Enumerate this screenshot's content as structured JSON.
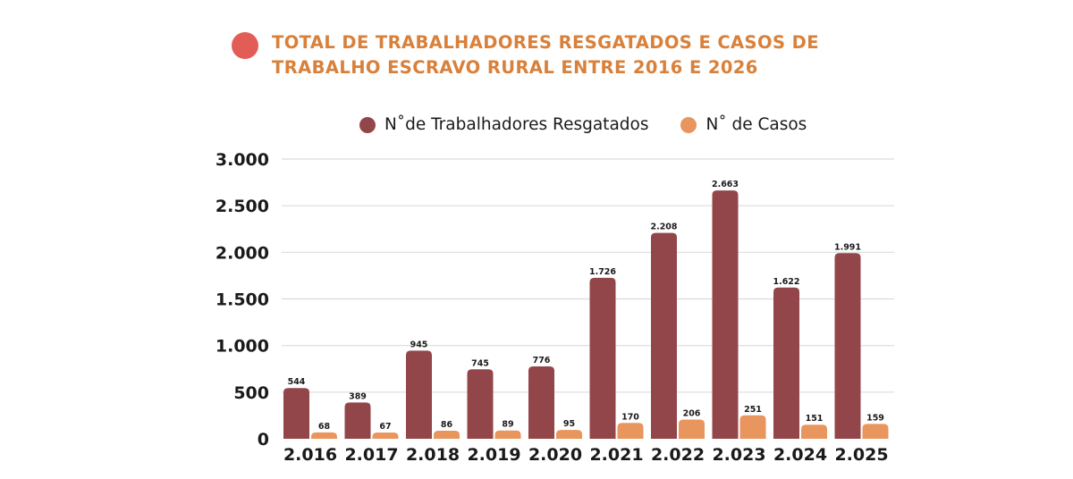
{
  "chart_data": {
    "type": "bar",
    "title": "TOTAL DE TRABALHADORES RESGATADOS E CASOS DE TRABALHO ESCRAVO RURAL ENTRE 2016 E 2026",
    "title_lines": [
      "TOTAL DE TRABALHADORES RESGATADOS E CASOS DE",
      "TRABALHO ESCRAVO RURAL ENTRE 2016 E 2026"
    ],
    "title_marker_color": "#e35d57",
    "xlabel": "",
    "ylabel": "",
    "categories": [
      "2.016",
      "2.017",
      "2.018",
      "2.019",
      "2.020",
      "2.021",
      "2.022",
      "2.023",
      "2.024",
      "2.025"
    ],
    "series": [
      {
        "name": "N˚de Trabalhadores Resgatados",
        "color": "#93464a",
        "values": [
          544,
          389,
          945,
          745,
          776,
          1726,
          2208,
          2663,
          1622,
          1991
        ],
        "labels": [
          "544",
          "389",
          "945",
          "745",
          "776",
          "1.726",
          "2.208",
          "2.663",
          "1.622",
          "1.991"
        ]
      },
      {
        "name": "N˚ de Casos",
        "color": "#e9955e",
        "values": [
          68,
          67,
          86,
          89,
          95,
          170,
          206,
          251,
          151,
          159
        ],
        "labels": [
          "68",
          "67",
          "86",
          "89",
          "95",
          "170",
          "206",
          "251",
          "151",
          "159"
        ]
      }
    ],
    "ylim": [
      0,
      3000
    ],
    "yticks": [
      0,
      500,
      1000,
      1500,
      2000,
      2500,
      3000
    ],
    "ytick_labels": [
      "0",
      "500",
      "1.000",
      "1.500",
      "2.000",
      "2.500",
      "3.000"
    ],
    "grid": true,
    "legend_position": "top-center"
  }
}
